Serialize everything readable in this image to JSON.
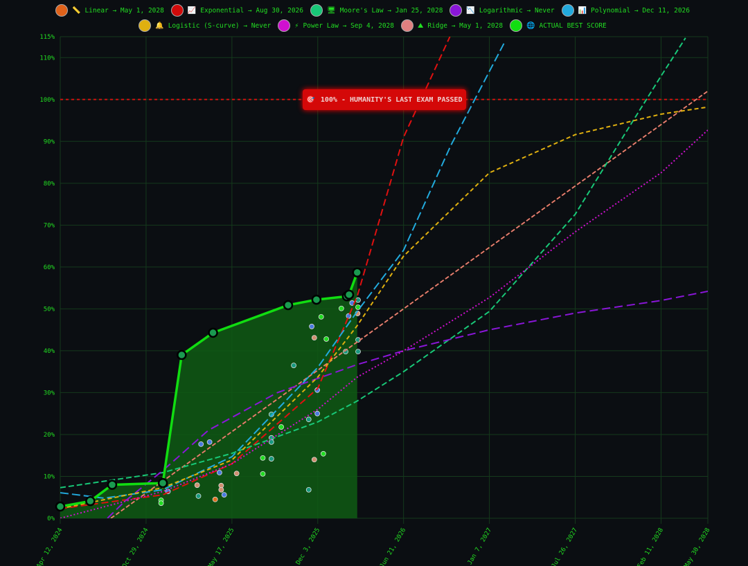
{
  "legend_row1": [
    {
      "label": "Linear → May 1, 2028",
      "color": "#e0621a",
      "icon": "ruler-icon",
      "glyph": "📏"
    },
    {
      "label": "Exponential → Aug 30, 2026",
      "color": "#d00a0a",
      "icon": "chart-up-icon",
      "glyph": "📈"
    },
    {
      "label": "Moore's Law → Jan 25, 2028",
      "color": "#18c878",
      "icon": "computer-icon",
      "glyph": "🖥"
    },
    {
      "label": "Logarithmic → Never",
      "color": "#8a16d8",
      "icon": "chart-down-icon",
      "glyph": "📉"
    },
    {
      "label": "Polynomial → Dec 11, 2026",
      "color": "#22aadd",
      "icon": "bar-chart-icon",
      "glyph": "📊"
    }
  ],
  "legend_row2": [
    {
      "label": "Logistic (S-curve) → Never",
      "color": "#e0b010",
      "icon": "bell-icon",
      "glyph": "🔔"
    },
    {
      "label": "Power Law → Sep 4, 2028",
      "color": "#d010d0",
      "icon": "lightning-icon",
      "glyph": "⚡"
    },
    {
      "label": "Ridge → May 1, 2028",
      "color": "#e08080",
      "icon": "mountain-icon",
      "glyph": "⛰"
    },
    {
      "label": "ACTUAL BEST SCORE",
      "color": "#11dd11",
      "icon": "globe-icon",
      "glyph": "🌐"
    }
  ],
  "banner": {
    "text": "100% - HUMANITY'S LAST EXAM PASSED",
    "icon": "target-icon",
    "glyph": "🎯",
    "color": "#d40808"
  },
  "chart_data": {
    "type": "line",
    "ylim": [
      0,
      115
    ],
    "yticks": [
      "0%",
      "10%",
      "20%",
      "30%",
      "40%",
      "50%",
      "60%",
      "70%",
      "80%",
      "90%",
      "100%",
      "110%",
      "115%"
    ],
    "ytick_values": [
      0,
      10,
      20,
      30,
      40,
      50,
      60,
      70,
      80,
      90,
      100,
      110,
      115
    ],
    "xlim": [
      "2024-04-12",
      "2028-05-30"
    ],
    "xticks": [
      "Apr 12, 2024",
      "Oct 29, 2024",
      "May 17, 2025",
      "Dec 3, 2025",
      "Jun 21, 2026",
      "Jan 7, 2027",
      "Jul 26, 2027",
      "Feb 11, 2028",
      "May 30, 2028"
    ],
    "xtick_dates": [
      "2024-04-12",
      "2024-10-29",
      "2025-05-17",
      "2025-12-03",
      "2026-06-21",
      "2027-01-07",
      "2027-07-26",
      "2028-02-11",
      "2028-05-30"
    ],
    "threshold": {
      "value": 100,
      "color": "#cc1111"
    },
    "grid": true,
    "legend_placement": "top",
    "series": [
      {
        "name": "Linear",
        "color": "#e0621a",
        "dash": "6,3",
        "points": [
          [
            "2024-08-08",
            0
          ],
          [
            "2028-05-30",
            102
          ]
        ]
      },
      {
        "name": "Ridge",
        "color": "#e08080",
        "dash": "6,3",
        "points": [
          [
            "2024-08-08",
            0
          ],
          [
            "2028-05-30",
            102
          ]
        ]
      },
      {
        "name": "Exponential",
        "color": "#e01010",
        "dash": "10,5",
        "points": [
          [
            "2024-04-12",
            2.3
          ],
          [
            "2024-12-07",
            5.6
          ],
          [
            "2025-05-17",
            13
          ],
          [
            "2025-12-03",
            31
          ],
          [
            "2026-03-05",
            53
          ],
          [
            "2026-06-21",
            91
          ],
          [
            "2026-10-07",
            115
          ]
        ]
      },
      {
        "name": "Moore's Law",
        "color": "#18c878",
        "dash": "8,4",
        "points": [
          [
            "2024-04-12",
            7.3
          ],
          [
            "2024-12-07",
            10.9
          ],
          [
            "2025-05-17",
            15.5
          ],
          [
            "2025-12-03",
            23
          ],
          [
            "2026-03-05",
            28
          ],
          [
            "2026-06-21",
            35
          ],
          [
            "2027-01-07",
            49.4
          ],
          [
            "2027-07-26",
            72.6
          ],
          [
            "2027-11-20",
            92
          ],
          [
            "2028-02-11",
            105.6
          ],
          [
            "2028-04-08",
            114.7
          ]
        ]
      },
      {
        "name": "Logarithmic",
        "color": "#8a16d8",
        "dash": "12,6",
        "points": [
          [
            "2024-07-31",
            0
          ],
          [
            "2024-09-09",
            4
          ],
          [
            "2024-12-07",
            11.4
          ],
          [
            "2025-03-23",
            21
          ],
          [
            "2025-08-31",
            30
          ],
          [
            "2026-03-05",
            36.7
          ],
          [
            "2026-06-21",
            40
          ],
          [
            "2027-01-07",
            45
          ],
          [
            "2027-07-26",
            49
          ],
          [
            "2028-02-11",
            52
          ],
          [
            "2028-05-30",
            54.2
          ]
        ]
      },
      {
        "name": "Polynomial",
        "color": "#22aadd",
        "dash": "12,5",
        "points": [
          [
            "2024-04-12",
            6.1
          ],
          [
            "2024-07-23",
            4.8
          ],
          [
            "2024-12-07",
            6.8
          ],
          [
            "2025-05-17",
            14.7
          ],
          [
            "2025-12-03",
            36
          ],
          [
            "2026-03-05",
            49.4
          ],
          [
            "2026-06-21",
            64
          ],
          [
            "2026-10-09",
            89
          ],
          [
            "2027-02-13",
            114
          ]
        ]
      },
      {
        "name": "Logistic (S-curve)",
        "color": "#e0b010",
        "dash": "6,4",
        "points": [
          [
            "2024-04-12",
            2.3
          ],
          [
            "2024-12-07",
            7.3
          ],
          [
            "2025-05-17",
            13.9
          ],
          [
            "2025-12-03",
            33.7
          ],
          [
            "2026-03-05",
            46
          ],
          [
            "2026-06-21",
            62.6
          ],
          [
            "2027-01-07",
            82.5
          ],
          [
            "2027-07-26",
            91.6
          ],
          [
            "2028-02-11",
            96.5
          ],
          [
            "2028-05-30",
            98.2
          ]
        ]
      },
      {
        "name": "Power Law",
        "color": "#d010d0",
        "dash": "2,3",
        "points": [
          [
            "2024-04-12",
            0
          ],
          [
            "2024-12-07",
            6.4
          ],
          [
            "2025-05-17",
            13
          ],
          [
            "2025-12-03",
            26
          ],
          [
            "2026-03-05",
            33.7
          ],
          [
            "2026-06-21",
            40
          ],
          [
            "2027-01-07",
            52.7
          ],
          [
            "2027-07-26",
            68.4
          ],
          [
            "2028-02-11",
            82.5
          ],
          [
            "2028-05-30",
            92.7
          ]
        ]
      }
    ],
    "best_score": {
      "name": "ACTUAL BEST SCORE",
      "color": "#11dd11",
      "points": [
        [
          "2024-04-12",
          2.8
        ],
        [
          "2024-06-21",
          4.1
        ],
        [
          "2024-08-11",
          8.0
        ],
        [
          "2024-12-07",
          8.4
        ],
        [
          "2025-01-20",
          39.0
        ],
        [
          "2025-04-03",
          44.3
        ],
        [
          "2025-09-25",
          50.9
        ],
        [
          "2025-11-30",
          52.2
        ],
        [
          "2026-02-09",
          53.0
        ],
        [
          "2026-02-14",
          53.4
        ],
        [
          "2026-03-05",
          58.7
        ]
      ]
    },
    "scatter": [
      [
        "2024-12-19",
        6.4,
        "#4a7be0"
      ],
      [
        "2024-12-03",
        4.3,
        "#22dd22"
      ],
      [
        "2024-12-03",
        3.6,
        "#22dd22"
      ],
      [
        "2025-03-06",
        17.7,
        "#4a7be0"
      ],
      [
        "2025-03-26",
        18.2,
        "#4a7be0"
      ],
      [
        "2025-02-25",
        7.9,
        "#d09070"
      ],
      [
        "2025-02-28",
        5.3,
        "#1a9a80"
      ],
      [
        "2025-04-18",
        10.9,
        "#4a7be0"
      ],
      [
        "2025-05-28",
        10.7,
        "#d09070"
      ],
      [
        "2025-04-22",
        7.8,
        "#d09070"
      ],
      [
        "2025-04-22",
        6.8,
        "#d09070"
      ],
      [
        "2025-04-08",
        4.5,
        "#e07020"
      ],
      [
        "2025-04-29",
        5.6,
        "#4a7be0"
      ],
      [
        "2025-07-28",
        14.4,
        "#22dd22"
      ],
      [
        "2025-08-17",
        14.2,
        "#1a9a80"
      ],
      [
        "2025-07-28",
        10.6,
        "#22dd22"
      ],
      [
        "2025-08-17",
        24.8,
        "#1a9a80"
      ],
      [
        "2025-08-17",
        19.2,
        "#1a9a80"
      ],
      [
        "2025-08-17",
        18.2,
        "#1a9a80"
      ],
      [
        "2025-09-09",
        21.8,
        "#22dd22"
      ],
      [
        "2025-10-08",
        36.5,
        "#1a9a80"
      ],
      [
        "2025-11-12",
        23.6,
        "#1a9a80"
      ],
      [
        "2025-11-12",
        6.8,
        "#1a9a80"
      ],
      [
        "2025-11-19",
        45.8,
        "#4a7be0"
      ],
      [
        "2025-11-25",
        43.1,
        "#d09070"
      ],
      [
        "2025-12-11",
        48.1,
        "#22dd22"
      ],
      [
        "2025-12-23",
        42.8,
        "#22dd22"
      ],
      [
        "2025-12-02",
        30.6,
        "#4a7be0"
      ],
      [
        "2025-12-02",
        25.0,
        "#4a7be0"
      ],
      [
        "2025-11-25",
        14.0,
        "#d09070"
      ],
      [
        "2025-12-16",
        15.4,
        "#22dd22"
      ],
      [
        "2026-01-27",
        50.1,
        "#22dd22"
      ],
      [
        "2026-02-13",
        48.3,
        "#4a7be0"
      ],
      [
        "2026-02-21",
        51.4,
        "#4a7be0"
      ],
      [
        "2026-03-07",
        52.1,
        "#1a9a80"
      ],
      [
        "2026-03-07",
        50.4,
        "#22dd22"
      ],
      [
        "2026-02-06",
        39.8,
        "#1a9a80"
      ],
      [
        "2026-03-07",
        39.8,
        "#1a9a80"
      ],
      [
        "2026-03-07",
        42.6,
        "#1a9a80"
      ],
      [
        "2026-03-06",
        48.9,
        "#d09070"
      ]
    ]
  }
}
